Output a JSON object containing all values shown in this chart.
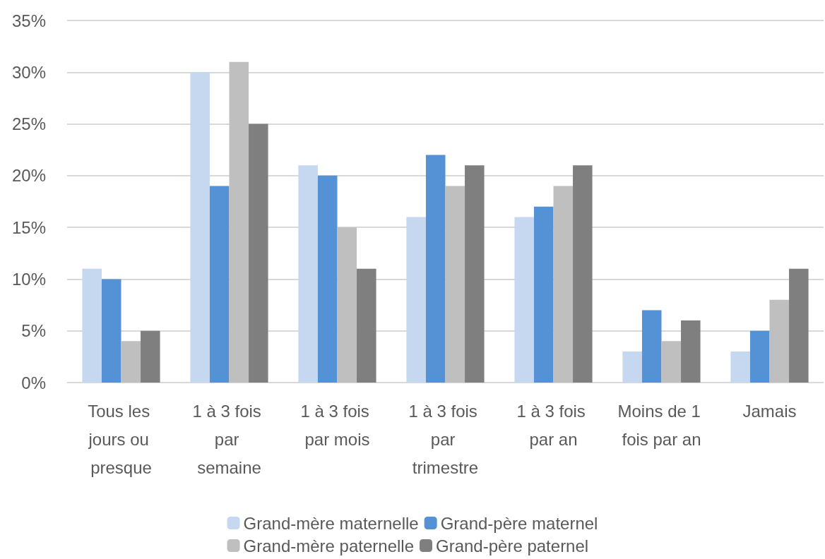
{
  "chart_data": {
    "type": "bar",
    "categories": [
      "Tous les jours ou presque",
      "1 à 3 fois par semaine",
      "1 à 3 fois par mois",
      "1 à 3 fois par trimestre",
      "1 à 3 fois par an",
      "Moins de 1 fois par an",
      "Jamais"
    ],
    "series": [
      {
        "name": "Grand-mère maternelle",
        "color": "#c5d8f0",
        "values": [
          11,
          30,
          21,
          16,
          16,
          3,
          3
        ]
      },
      {
        "name": "Grand-père maternel",
        "color": "#5591d5",
        "values": [
          10,
          19,
          20,
          22,
          17,
          7,
          5
        ]
      },
      {
        "name": "Grand-mère paternelle",
        "color": "#bfbfbf",
        "values": [
          4,
          31,
          15,
          19,
          19,
          4,
          8
        ]
      },
      {
        "name": "Grand-père paternel",
        "color": "#7f7f7f",
        "values": [
          5,
          25,
          11,
          21,
          21,
          6,
          11
        ]
      }
    ],
    "ylim": [
      0,
      35
    ],
    "yticks": [
      {
        "value": 0,
        "label": "0%"
      },
      {
        "value": 5,
        "label": "5%"
      },
      {
        "value": 10,
        "label": "10%"
      },
      {
        "value": 15,
        "label": "15%"
      },
      {
        "value": 20,
        "label": "20%"
      },
      {
        "value": 25,
        "label": "25%"
      },
      {
        "value": 30,
        "label": "30%"
      },
      {
        "value": 35,
        "label": "35%"
      }
    ],
    "grid": "y",
    "legend": "bottom"
  }
}
